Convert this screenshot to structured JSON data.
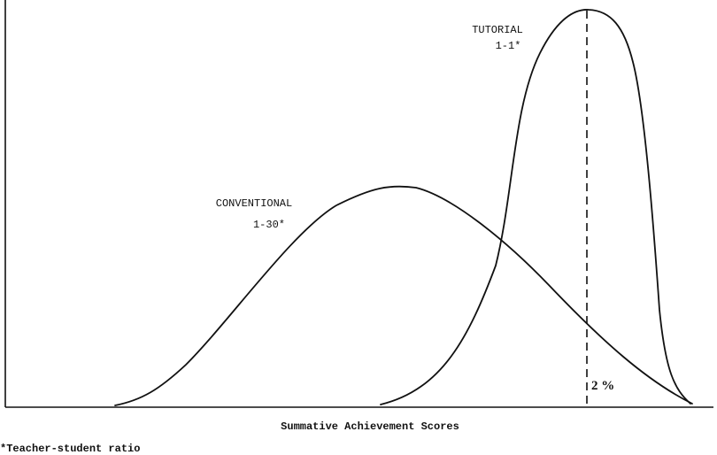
{
  "chart_data": {
    "type": "line",
    "title": "",
    "xlabel": "Summative Achievement Scores",
    "ylabel": "",
    "footnote": "*Teacher-student ratio",
    "grid": false,
    "series": [
      {
        "name": "CONVENTIONAL",
        "label_line1": "CONVENTIONAL",
        "label_line2": "1-30*"
      },
      {
        "name": "TUTORIAL",
        "label_line1": "TUTORIAL",
        "label_line2": "1-1*"
      }
    ],
    "annotations": [
      {
        "text": "2 %"
      }
    ]
  }
}
